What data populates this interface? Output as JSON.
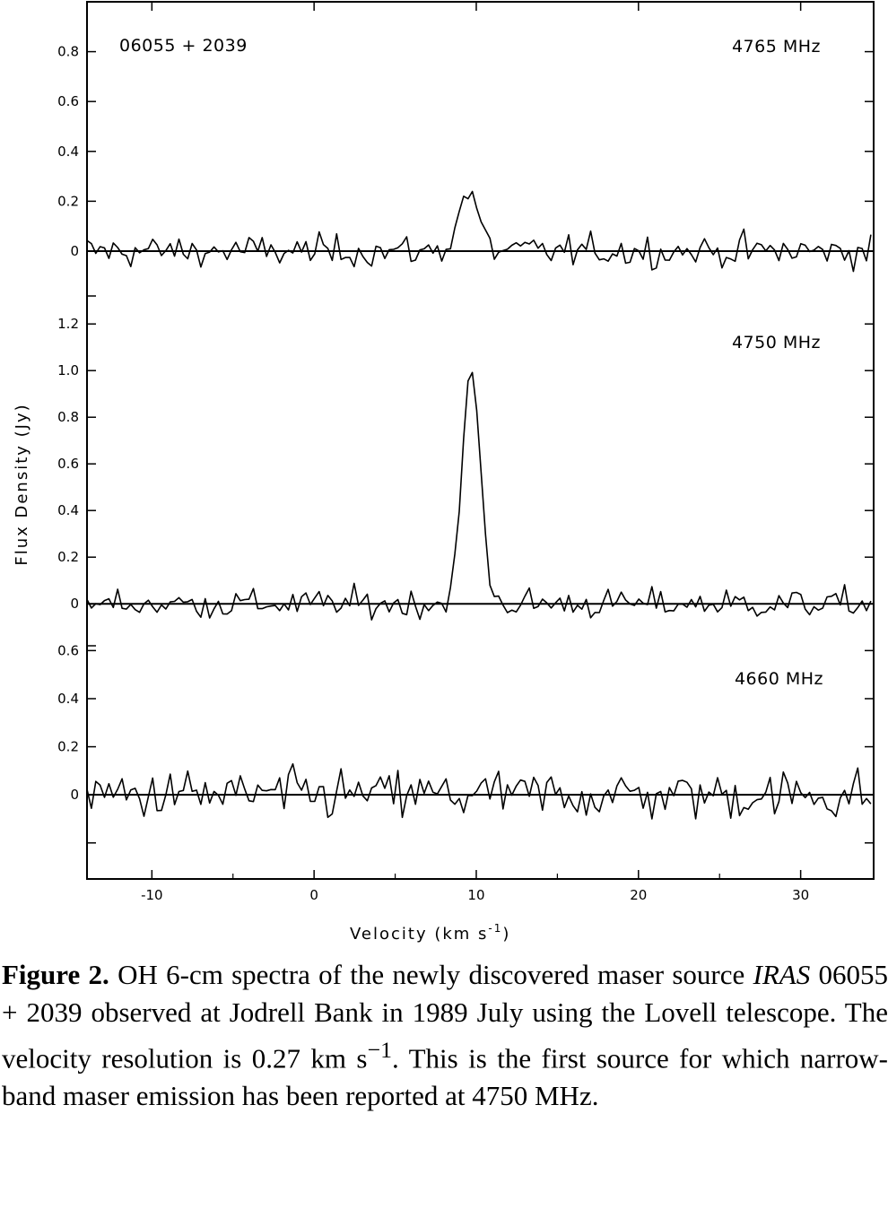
{
  "figure": {
    "y_axis_label": "Flux  Density  (Jy)",
    "x_axis_label": "Velocity  (km s",
    "x_axis_label_sup": "-1",
    "x_axis_label_end": ")"
  },
  "caption": {
    "label": "Figure 2.",
    "text_1": " OH 6-cm spectra of the newly discovered maser source ",
    "source_italic": "IRAS",
    "text_2": " 06055 + 2039 observed at Jodrell Bank in 1989 July using the Lovell telescope. The velocity resolution is 0.27 km s",
    "sup": "−1",
    "text_3": ". This is the first source for which narrow-band maser emission has been reported at 4750 MHz."
  },
  "chart_data": {
    "type": "line",
    "xlabel": "Velocity (km s-1)",
    "ylabel": "Flux Density (Jy)",
    "xlim": [
      -14,
      34.5
    ],
    "xticks": [
      -10,
      0,
      10,
      20,
      30
    ],
    "xtick_labels": [
      "-10",
      "0",
      "10",
      "20",
      "30"
    ],
    "grid": false,
    "source_label": "06055 + 2039",
    "panels": [
      {
        "name": "4765 MHz",
        "ylim": [
          -0.18,
          1.0
        ],
        "yticks": [
          0,
          0.2,
          0.4,
          0.6,
          0.8
        ],
        "ytick_labels": [
          "0",
          "0.2",
          "0.4",
          "0.6",
          "0.8"
        ],
        "peak": {
          "velocity": 9.5,
          "flux": 0.24
        },
        "noise_rms": 0.045
      },
      {
        "name": "4750 MHz",
        "ylim": [
          -0.18,
          1.32
        ],
        "yticks": [
          0,
          0.2,
          0.4,
          0.6,
          0.8,
          1.0,
          1.2
        ],
        "ytick_labels": [
          "0",
          "0.2",
          "0.4",
          "0.6",
          "0.8",
          "1.0",
          "1.2"
        ],
        "peak": {
          "velocity": 9.7,
          "flux": 1.0
        },
        "noise_rms": 0.045
      },
      {
        "name": "4660 MHz",
        "ylim": [
          -0.35,
          0.62
        ],
        "yticks": [
          0,
          0.2,
          0.4,
          0.6
        ],
        "ytick_labels": [
          "0",
          "0.2",
          "0.4",
          "0.6"
        ],
        "peak": null,
        "noise_rms": 0.075
      }
    ]
  }
}
